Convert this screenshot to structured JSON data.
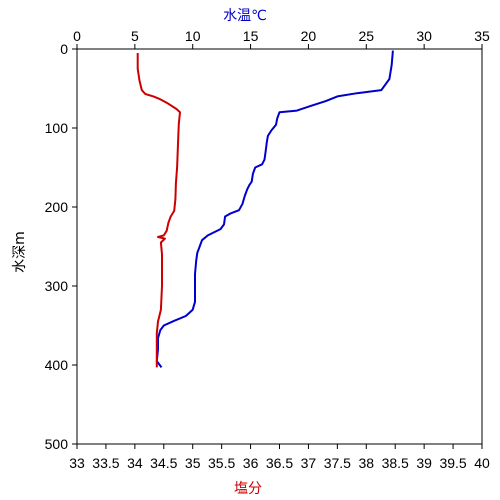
{
  "chart_data": {
    "type": "line",
    "title": "",
    "top_axis_label": "水温℃",
    "bottom_axis_label": "塩分",
    "ylabel": "水深m",
    "top_ticks": [
      "0",
      "5",
      "10",
      "15",
      "20",
      "25",
      "30",
      "35"
    ],
    "bottom_ticks": [
      "33",
      "33.5",
      "34",
      "34.5",
      "35",
      "35.5",
      "36",
      "36.5",
      "37",
      "37.5",
      "38",
      "38.5",
      "39",
      "39.5",
      "40"
    ],
    "y_ticks": [
      "0",
      "100",
      "200",
      "300",
      "400",
      "500"
    ],
    "top_range": [
      0,
      35
    ],
    "bottom_range": [
      33,
      40
    ],
    "y_range": [
      0,
      500
    ],
    "y_inverted": true,
    "grid": false,
    "colors": {
      "temperature": "#0000cc",
      "salinity": "#cc0000",
      "axes": "#000000"
    },
    "series": [
      {
        "axis": "top",
        "color": "#0000cc",
        "points": [
          [
            27.3,
            2
          ],
          [
            27.2,
            20
          ],
          [
            27.0,
            38
          ],
          [
            26.3,
            52
          ],
          [
            24.2,
            56
          ],
          [
            22.5,
            60
          ],
          [
            21.5,
            66
          ],
          [
            20.2,
            72
          ],
          [
            19.0,
            78
          ],
          [
            17.5,
            80
          ],
          [
            17.3,
            88
          ],
          [
            17.2,
            96
          ],
          [
            16.8,
            103
          ],
          [
            16.5,
            110
          ],
          [
            16.4,
            118
          ],
          [
            16.3,
            130
          ],
          [
            16.2,
            140
          ],
          [
            16.0,
            146
          ],
          [
            15.4,
            150
          ],
          [
            15.2,
            158
          ],
          [
            15.1,
            168
          ],
          [
            14.9,
            172
          ],
          [
            14.7,
            178
          ],
          [
            14.5,
            186
          ],
          [
            14.3,
            196
          ],
          [
            14.0,
            204
          ],
          [
            13.3,
            208
          ],
          [
            12.8,
            212
          ],
          [
            12.7,
            222
          ],
          [
            12.4,
            228
          ],
          [
            11.3,
            236
          ],
          [
            10.8,
            242
          ],
          [
            10.6,
            250
          ],
          [
            10.4,
            258
          ],
          [
            10.3,
            268
          ],
          [
            10.2,
            285
          ],
          [
            10.2,
            300
          ],
          [
            10.2,
            320
          ],
          [
            10.0,
            330
          ],
          [
            9.4,
            338
          ],
          [
            8.4,
            344
          ],
          [
            7.5,
            350
          ],
          [
            7.2,
            356
          ],
          [
            7.0,
            366
          ],
          [
            7.0,
            380
          ],
          [
            6.9,
            395
          ],
          [
            7.3,
            403
          ]
        ]
      },
      {
        "axis": "bottom",
        "color": "#cc0000",
        "points": [
          [
            34.05,
            5
          ],
          [
            34.05,
            25
          ],
          [
            34.08,
            40
          ],
          [
            34.12,
            52
          ],
          [
            34.18,
            57
          ],
          [
            34.32,
            60
          ],
          [
            34.42,
            63
          ],
          [
            34.55,
            68
          ],
          [
            34.72,
            76
          ],
          [
            34.78,
            80
          ],
          [
            34.76,
            95
          ],
          [
            34.75,
            110
          ],
          [
            34.74,
            130
          ],
          [
            34.73,
            150
          ],
          [
            34.71,
            170
          ],
          [
            34.7,
            190
          ],
          [
            34.68,
            205
          ],
          [
            34.62,
            212
          ],
          [
            34.58,
            220
          ],
          [
            34.55,
            230
          ],
          [
            34.5,
            236
          ],
          [
            34.4,
            238
          ],
          [
            34.52,
            240
          ],
          [
            34.45,
            245
          ],
          [
            34.47,
            260
          ],
          [
            34.47,
            300
          ],
          [
            34.45,
            330
          ],
          [
            34.4,
            345
          ],
          [
            34.38,
            360
          ],
          [
            34.38,
            380
          ],
          [
            34.38,
            403
          ]
        ]
      }
    ]
  }
}
